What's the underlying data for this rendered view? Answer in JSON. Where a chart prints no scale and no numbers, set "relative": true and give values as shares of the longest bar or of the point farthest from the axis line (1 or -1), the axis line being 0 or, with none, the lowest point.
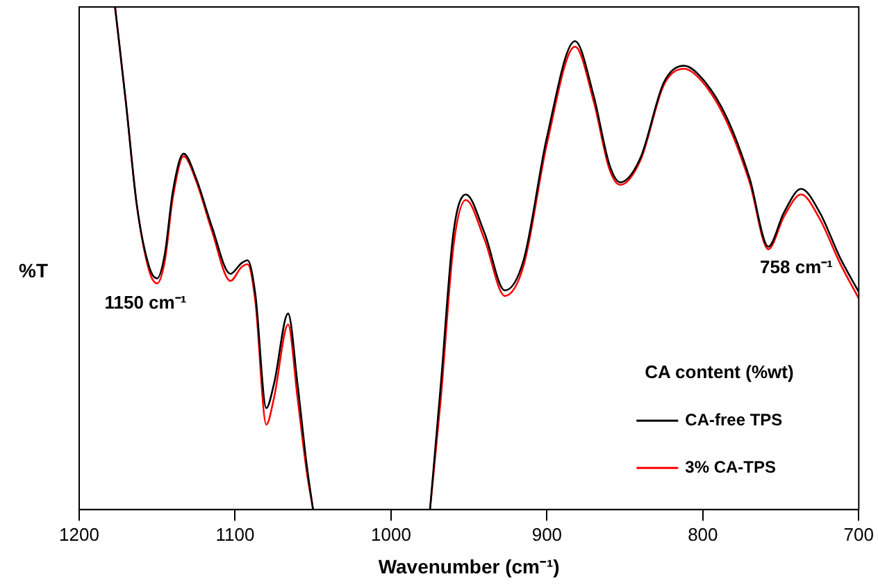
{
  "chart_data": {
    "type": "line",
    "relative": true,
    "xlabel": "Wavenumber (cm⁻¹)",
    "ylabel": "%T",
    "legend_title": "CA content (%wt)",
    "legend": "bottom right",
    "grid": false,
    "marker": "none",
    "line_style": "solid",
    "xlim": [
      1200,
      700
    ],
    "xticks": [
      1200,
      1100,
      1000,
      900,
      800,
      700
    ],
    "x": [
      1177,
      1170,
      1163,
      1155,
      1150,
      1145,
      1140,
      1133,
      1125,
      1115,
      1103,
      1096,
      1092,
      1087,
      1080,
      1075,
      1066,
      1060,
      1054,
      1050,
      1012,
      975,
      968,
      960,
      952,
      940,
      927,
      915,
      900,
      882,
      870,
      860,
      853,
      840,
      825,
      812,
      800,
      785,
      770,
      758,
      748,
      737,
      725,
      712,
      700
    ],
    "series": [
      {
        "name": "CA-free TPS",
        "color": "#000000",
        "values": [
          1,
          0.809,
          0.605,
          0.482,
          0.46,
          0.51,
          0.632,
          0.708,
          0.659,
          0.564,
          0.469,
          0.49,
          0.496,
          0.428,
          0.202,
          0.251,
          0.39,
          0.251,
          0.087,
          0,
          null,
          0,
          0.251,
          0.55,
          0.627,
          0.55,
          0.436,
          0.496,
          0.741,
          0.932,
          0.823,
          0.687,
          0.651,
          0.7,
          0.85,
          0.883,
          0.856,
          0.782,
          0.659,
          0.523,
          0.591,
          0.638,
          0.591,
          0.501,
          0.433
        ]
      },
      {
        "name": "3% CA-TPS",
        "color": "#ff0000",
        "values": [
          1,
          0.809,
          0.605,
          0.474,
          0.45,
          0.496,
          0.619,
          0.703,
          0.654,
          0.556,
          0.455,
          0.482,
          0.488,
          0.414,
          0.169,
          0.223,
          0.368,
          0.223,
          0.074,
          0,
          null,
          0,
          0.223,
          0.523,
          0.616,
          0.537,
          0.425,
          0.485,
          0.728,
          0.921,
          0.812,
          0.678,
          0.646,
          0.695,
          0.845,
          0.877,
          0.85,
          0.774,
          0.651,
          0.518,
          0.583,
          0.627,
          0.578,
          0.49,
          0.42
        ]
      }
    ],
    "annotations": [
      "1150 cm⁻¹",
      "758 cm⁻¹"
    ]
  }
}
